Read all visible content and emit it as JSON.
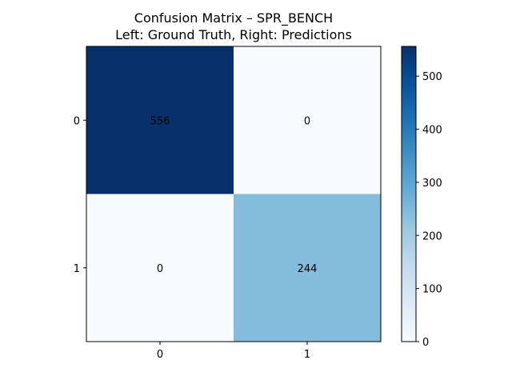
{
  "chart_data": {
    "type": "heatmap",
    "title": "Confusion Matrix – SPR_BENCH",
    "subtitle": "Left: Ground Truth, Right: Predictions",
    "xlabel": "",
    "ylabel": "",
    "x_categories": [
      "0",
      "1"
    ],
    "y_categories": [
      "0",
      "1"
    ],
    "values": [
      [
        556,
        0
      ],
      [
        0,
        244
      ]
    ],
    "colormap": "Blues",
    "color_range": [
      0,
      556
    ],
    "colorbar": {
      "ticks": [
        0,
        100,
        200,
        300,
        400,
        500
      ],
      "tick_labels": [
        "0",
        "100",
        "200",
        "300",
        "400",
        "500"
      ]
    },
    "grid": false,
    "legend": "colorbar-right"
  }
}
